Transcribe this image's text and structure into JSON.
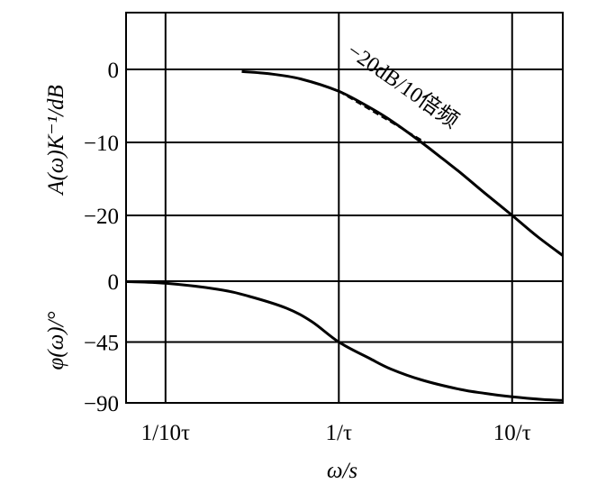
{
  "chart_data": [
    {
      "type": "line",
      "panel": "magnitude",
      "ylabel": "A(ω)K⁻¹/dB",
      "ylim": [
        -25,
        8
      ],
      "y_ticks": [
        0,
        -10,
        -20
      ],
      "y_tick_labels": [
        "0",
        "−10",
        "−20"
      ],
      "x_scale": "log",
      "x_units": "ωτ",
      "xlim": [
        0.0592,
        19.6
      ],
      "x_gridlines": [
        0.1,
        1,
        10
      ],
      "grid": true,
      "series": [
        {
          "style": "solid",
          "x": [
            0.2754,
            0.4,
            0.6,
            1,
            1.5,
            2,
            3,
            4,
            5,
            7,
            10,
            14,
            19.6
          ],
          "values": [
            -0.3,
            -0.6,
            -1.3,
            -3.0,
            -5.2,
            -7.0,
            -10.0,
            -12.3,
            -14.1,
            -17.0,
            -20.0,
            -22.9,
            -25.5
          ]
        },
        {
          "style": "dashed",
          "x": [
            1,
            3.16
          ],
          "values": [
            -3.0,
            -10.0
          ]
        }
      ],
      "annotation": "−20dB/10倍频"
    },
    {
      "type": "line",
      "panel": "phase",
      "ylabel": "φ(ω)/°",
      "xlabel": "ω/s",
      "ylim": [
        -90,
        0
      ],
      "y_ticks": [
        0,
        -45,
        -90
      ],
      "y_tick_labels": [
        "0",
        "−45",
        "−90"
      ],
      "x_scale": "log",
      "x_units": "ωτ",
      "xlim": [
        0.0592,
        19.6
      ],
      "x_ticks": [
        0.1,
        1,
        10
      ],
      "x_tick_labels": [
        "1/10τ",
        "1/τ",
        "10/τ"
      ],
      "grid": true,
      "series": [
        {
          "style": "solid",
          "x": [
            0.0592,
            0.1,
            0.2,
            0.3,
            0.5,
            0.7,
            1,
            1.5,
            2,
            3,
            5,
            7,
            10,
            15,
            19.6
          ],
          "values": [
            -0.3,
            -1.5,
            -6,
            -11,
            -20,
            -30,
            -45,
            -57,
            -65,
            -73,
            -80,
            -83,
            -85.5,
            -87.5,
            -88.2
          ]
        }
      ]
    }
  ]
}
